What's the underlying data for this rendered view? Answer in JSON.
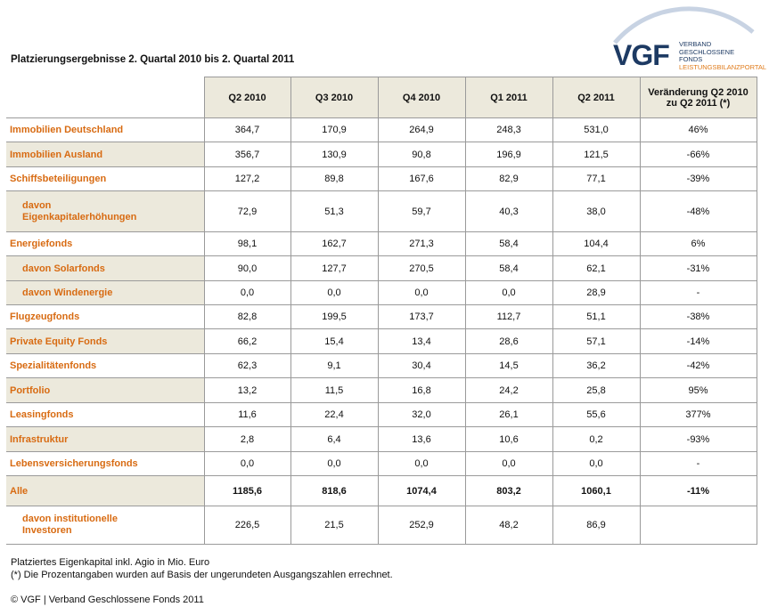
{
  "title": "Platzierungsergebnisse 2. Quartal 2010 bis 2. Quartal 2011",
  "logo": {
    "wordmark": "VGF",
    "line1": "VERBAND",
    "line2": "GESCHLOSSENE",
    "line3": "FONDS",
    "line4": "LEISTUNGSBILANZPORTAL"
  },
  "colors": {
    "accent": "#d86b12",
    "shade": "#ece9dc",
    "brand": "#1d3a63"
  },
  "headers": [
    "Q2 2010",
    "Q3 2010",
    "Q4 2010",
    "Q1 2011",
    "Q2 2011",
    "Veränderung Q2 2010 zu Q2 2011 (*)"
  ],
  "rows": [
    {
      "label": "Immobilien Deutschland",
      "values": [
        "364,7",
        "170,9",
        "264,9",
        "248,3",
        "531,0",
        "46%"
      ],
      "sub": false,
      "shade": false
    },
    {
      "label": "Immobilien Ausland",
      "values": [
        "356,7",
        "130,9",
        "90,8",
        "196,9",
        "121,5",
        "-66%"
      ],
      "sub": false,
      "shade": true
    },
    {
      "label": "Schiffsbeteiligungen",
      "values": [
        "127,2",
        "89,8",
        "167,6",
        "82,9",
        "77,1",
        "-39%"
      ],
      "sub": false,
      "shade": false
    },
    {
      "label": "davon Eigenkapitalerhöhungen",
      "values": [
        "72,9",
        "51,3",
        "59,7",
        "40,3",
        "38,0",
        "-48%"
      ],
      "sub": true,
      "shade": true
    },
    {
      "label": "Energiefonds",
      "values": [
        "98,1",
        "162,7",
        "271,3",
        "58,4",
        "104,4",
        "6%"
      ],
      "sub": false,
      "shade": false
    },
    {
      "label": "davon Solarfonds",
      "values": [
        "90,0",
        "127,7",
        "270,5",
        "58,4",
        "62,1",
        "-31%"
      ],
      "sub": true,
      "shade": true
    },
    {
      "label": "davon Windenergie",
      "values": [
        "0,0",
        "0,0",
        "0,0",
        "0,0",
        "28,9",
        "-"
      ],
      "sub": true,
      "shade": true
    },
    {
      "label": "Flugzeugfonds",
      "values": [
        "82,8",
        "199,5",
        "173,7",
        "112,7",
        "51,1",
        "-38%"
      ],
      "sub": false,
      "shade": false
    },
    {
      "label": "Private Equity Fonds",
      "values": [
        "66,2",
        "15,4",
        "13,4",
        "28,6",
        "57,1",
        "-14%"
      ],
      "sub": false,
      "shade": true
    },
    {
      "label": "Spezialitätenfonds",
      "values": [
        "62,3",
        "9,1",
        "30,4",
        "14,5",
        "36,2",
        "-42%"
      ],
      "sub": false,
      "shade": false
    },
    {
      "label": "Portfolio",
      "values": [
        "13,2",
        "11,5",
        "16,8",
        "24,2",
        "25,8",
        "95%"
      ],
      "sub": false,
      "shade": true
    },
    {
      "label": "Leasingfonds",
      "values": [
        "11,6",
        "22,4",
        "32,0",
        "26,1",
        "55,6",
        "377%"
      ],
      "sub": false,
      "shade": false
    },
    {
      "label": "Infrastruktur",
      "values": [
        "2,8",
        "6,4",
        "13,6",
        "10,6",
        "0,2",
        "-93%"
      ],
      "sub": false,
      "shade": true
    },
    {
      "label": "Lebensversicherungsfonds",
      "values": [
        "0,0",
        "0,0",
        "0,0",
        "0,0",
        "0,0",
        "-"
      ],
      "sub": false,
      "shade": false
    },
    {
      "label": "Alle",
      "values": [
        "1185,6",
        "818,6",
        "1074,4",
        "803,2",
        "1060,1",
        "-11%"
      ],
      "sub": false,
      "shade": true,
      "total": true
    },
    {
      "label": "davon institutionelle Investoren",
      "values": [
        "226,5",
        "21,5",
        "252,9",
        "48,2",
        "86,9",
        ""
      ],
      "sub": true,
      "shade": false
    }
  ],
  "notes": {
    "unit": "Platziertes Eigenkapital inkl. Agio in Mio. Euro",
    "footnote": "(*) Die Prozentangaben wurden auf Basis der ungerundeten Ausgangszahlen errechnet.",
    "copyright": "© VGF | Verband Geschlossene Fonds 2011"
  }
}
